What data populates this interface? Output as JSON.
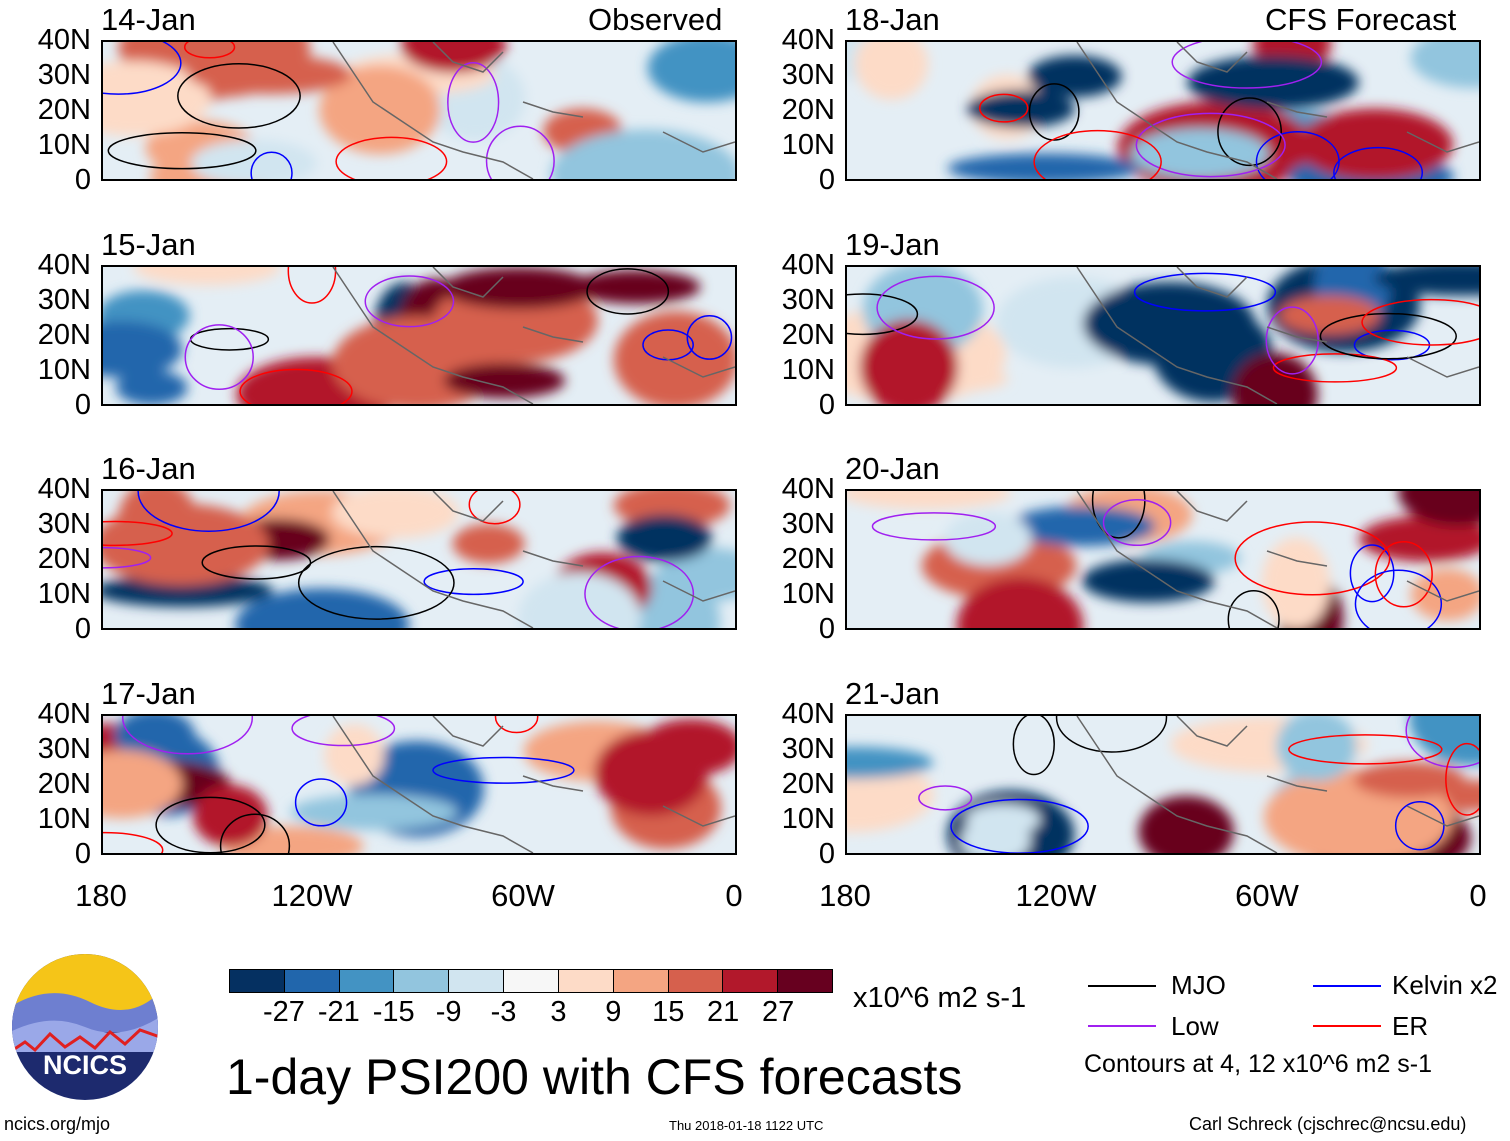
{
  "title": "1-day PSI200 with CFS forecasts",
  "left_column_label": "Observed",
  "right_column_label": "CFS Forecast",
  "panels_left": [
    "14-Jan",
    "15-Jan",
    "16-Jan",
    "17-Jan"
  ],
  "panels_right": [
    "18-Jan",
    "19-Jan",
    "20-Jan",
    "21-Jan"
  ],
  "y_ticks": [
    "40N",
    "30N",
    "20N",
    "10N",
    "0"
  ],
  "x_ticks": [
    "180",
    "120W",
    "60W",
    "0"
  ],
  "colorbar": {
    "labels": [
      "-27",
      "-21",
      "-15",
      "-9",
      "-3",
      "3",
      "9",
      "15",
      "21",
      "27"
    ],
    "colors": [
      "#053061",
      "#2166ac",
      "#4393c3",
      "#92c5de",
      "#d1e5f0",
      "#f7f7f7",
      "#fddbc7",
      "#f4a582",
      "#d6604d",
      "#b2182b",
      "#67001f"
    ],
    "units": "x10^6 m2 s-1"
  },
  "legend": {
    "items": [
      {
        "label": "MJO",
        "color": "#000000"
      },
      {
        "label": "Kelvin x2",
        "color": "#0000ff"
      },
      {
        "label": "Low",
        "color": "#a020f0"
      },
      {
        "label": "ER",
        "color": "#ff0000"
      }
    ],
    "note": "Contours at 4, 12 x10^6 m2 s-1"
  },
  "logo_text": "NCICS",
  "footer": {
    "url": "ncics.org/mjo",
    "timestamp": "Thu 2018-01-18 1122 UTC",
    "credit": "Carl Schreck (cjschrec@ncsu.edu)"
  }
}
